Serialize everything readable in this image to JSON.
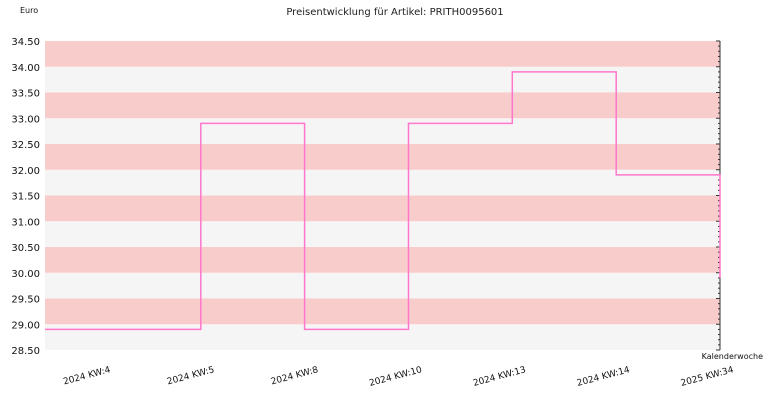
{
  "chart_data": {
    "type": "line",
    "title": "Preisentwicklung für Artikel: PRITH0095601",
    "ylabel": "Euro",
    "xlabel": "Kalenderwoche",
    "categories": [
      "2024 KW:4",
      "2024 KW:5",
      "2024 KW:8",
      "2024 KW:10",
      "2024 KW:13",
      "2024 KW:14",
      "2025 KW:34"
    ],
    "series": [
      {
        "values": [
          28.9,
          32.9,
          28.9,
          32.9,
          33.9,
          31.9,
          29.9
        ]
      }
    ],
    "step": true,
    "ylim": [
      28.5,
      34.5
    ],
    "yticks": [
      "28.50",
      "29.00",
      "29.50",
      "30.00",
      "30.50",
      "31.00",
      "31.50",
      "32.00",
      "32.50",
      "33.00",
      "33.50",
      "34.00",
      "34.50"
    ],
    "band_colors": [
      "#f5f5f5",
      "#f9cccc"
    ],
    "line_color": "#ff77cc",
    "grid": true
  }
}
